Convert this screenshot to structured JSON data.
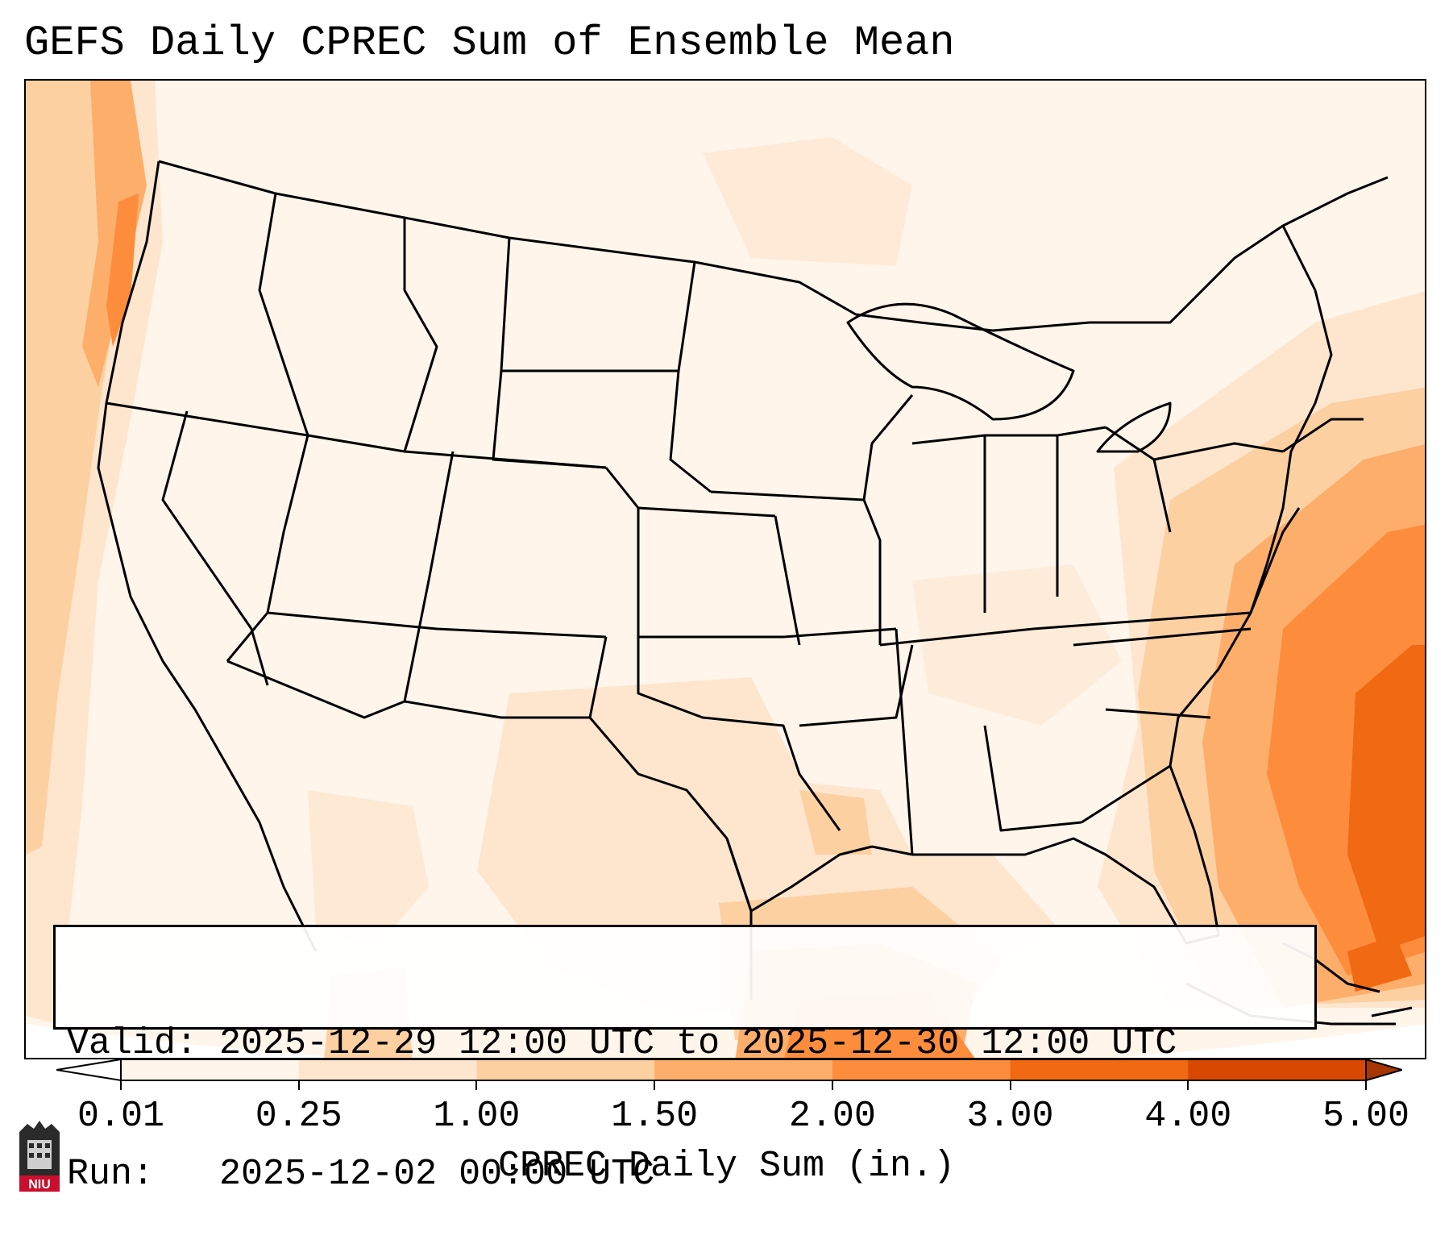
{
  "title": "GEFS Daily CPREC Sum of Ensemble Mean",
  "info": {
    "valid_label": "Valid:",
    "valid_value": "2025-12-29 12:00 UTC to 2025-12-30 12:00 UTC",
    "run_label": "Run:",
    "run_value": "2025-12-02 00:00 UTC"
  },
  "colorbar": {
    "label": "CPREC Daily Sum (in.)",
    "ticks": [
      "0.01",
      "0.25",
      "1.00",
      "1.50",
      "2.00",
      "3.00",
      "4.00",
      "5.00"
    ],
    "colors": [
      "#fff5eb",
      "#fee6ce",
      "#fdd0a2",
      "#fdae6b",
      "#fd8d3c",
      "#f16913",
      "#d94801",
      "#a63603"
    ]
  },
  "logo": {
    "text": "NIU"
  }
}
